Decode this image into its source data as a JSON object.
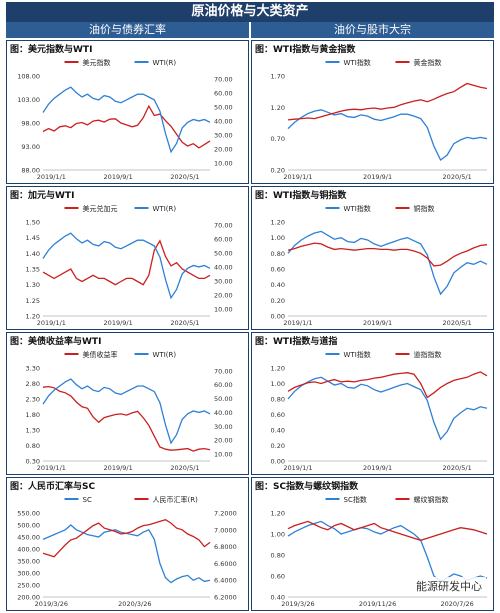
{
  "page": {
    "title": "原油价格与大类资产",
    "left_header": "油价与债券汇率",
    "right_header": "油价与股市大宗",
    "watermark": "能源研发中心"
  },
  "panels": [
    {
      "title": "图：美元指数与WTI",
      "chart_data": {
        "type": "line",
        "dual_axis": true,
        "series": [
          {
            "name": "美元指数",
            "color": "#cc1f1f",
            "axis": "left"
          },
          {
            "name": "WTI(R)",
            "color": "#2f80d6",
            "axis": "right"
          }
        ],
        "left_ticks": [
          "108.00",
          "103.00",
          "98.00",
          "93.00",
          "88.00"
        ],
        "left_range": [
          88,
          108
        ],
        "right_ticks": [
          "70.00",
          "60.00",
          "50.00",
          "40.00",
          "30.00",
          "20.00",
          "10.00"
        ],
        "right_range": [
          5,
          72
        ],
        "x_ticks": [
          "2019/1/1",
          "2019/9/1",
          "2020/5/1"
        ],
        "values_a": [
          96.2,
          96.8,
          96.3,
          97.2,
          97.4,
          97.0,
          97.9,
          98.1,
          97.6,
          98.4,
          98.6,
          98.2,
          98.8,
          98.9,
          98.0,
          97.6,
          97.2,
          97.5,
          99.1,
          101.6,
          99.6,
          99.9,
          98.5,
          97.3,
          95.6,
          93.9,
          93.1,
          93.6,
          92.7,
          93.4,
          94.2
        ],
        "values_b": [
          46,
          52,
          56,
          59,
          62,
          64,
          60,
          57,
          59,
          56,
          55,
          58,
          57,
          54,
          53,
          55,
          57,
          59,
          59,
          57,
          55,
          47,
          31,
          18,
          24,
          35,
          39,
          41,
          40,
          41,
          39
        ]
      }
    },
    {
      "title": "图：WTI指数与黄金指数",
      "chart_data": {
        "type": "line",
        "dual_axis": false,
        "series": [
          {
            "name": "WTI指数",
            "color": "#2f80d6"
          },
          {
            "name": "黄金指数",
            "color": "#cc1f1f"
          }
        ],
        "left_ticks": [
          "1.70",
          "1.20",
          "0.70",
          "0.20"
        ],
        "left_range": [
          0.2,
          1.7
        ],
        "x_ticks": [
          "2019/1/1",
          "2019/9/1",
          "2020/5/1"
        ],
        "values_a": [
          0.86,
          0.96,
          1.04,
          1.1,
          1.14,
          1.16,
          1.12,
          1.08,
          1.1,
          1.05,
          1.04,
          1.08,
          1.06,
          1.01,
          0.99,
          1.02,
          1.05,
          1.09,
          1.09,
          1.06,
          1.02,
          0.88,
          0.58,
          0.36,
          0.44,
          0.62,
          0.68,
          0.72,
          0.7,
          0.72,
          0.7
        ],
        "values_a2": [],
        "values_b": [
          1.0,
          1.01,
          1.02,
          1.03,
          1.02,
          1.05,
          1.08,
          1.11,
          1.14,
          1.16,
          1.17,
          1.16,
          1.18,
          1.19,
          1.17,
          1.19,
          1.2,
          1.24,
          1.27,
          1.3,
          1.32,
          1.29,
          1.33,
          1.38,
          1.42,
          1.45,
          1.52,
          1.58,
          1.55,
          1.52,
          1.5
        ]
      }
    },
    {
      "title": "图：加元与WTI",
      "chart_data": {
        "type": "line",
        "dual_axis": true,
        "series": [
          {
            "name": "美元兑加元",
            "color": "#cc1f1f",
            "axis": "left"
          },
          {
            "name": "WTI(R)",
            "color": "#2f80d6",
            "axis": "right"
          }
        ],
        "left_ticks": [
          "1.50",
          "1.45",
          "1.40",
          "1.35",
          "1.30",
          "1.25",
          "1.20"
        ],
        "left_range": [
          1.2,
          1.5
        ],
        "right_ticks": [
          "70.00",
          "60.00",
          "50.00",
          "40.00",
          "30.00",
          "20.00",
          "10.00"
        ],
        "right_range": [
          5,
          72
        ],
        "x_ticks": [
          "2019/1/1",
          "2019/9/1",
          "2020/5/1"
        ],
        "values_a": [
          1.34,
          1.33,
          1.32,
          1.33,
          1.34,
          1.35,
          1.32,
          1.31,
          1.32,
          1.33,
          1.32,
          1.32,
          1.31,
          1.3,
          1.31,
          1.32,
          1.32,
          1.31,
          1.3,
          1.33,
          1.41,
          1.44,
          1.39,
          1.36,
          1.37,
          1.35,
          1.34,
          1.33,
          1.32,
          1.32,
          1.33
        ],
        "values_b": [
          46,
          52,
          56,
          59,
          62,
          64,
          60,
          57,
          59,
          56,
          55,
          58,
          57,
          54,
          53,
          55,
          57,
          59,
          59,
          57,
          55,
          47,
          31,
          18,
          24,
          35,
          39,
          41,
          40,
          41,
          39
        ]
      }
    },
    {
      "title": "图：WTI指数与铜指数",
      "chart_data": {
        "type": "line",
        "dual_axis": false,
        "series": [
          {
            "name": "WTI指数",
            "color": "#2f80d6"
          },
          {
            "name": "铜指数",
            "color": "#cc1f1f"
          }
        ],
        "left_ticks": [
          "1.20",
          "1.00",
          "0.80",
          "0.60",
          "0.40",
          "0.20",
          "0.00"
        ],
        "left_range": [
          0,
          1.2
        ],
        "x_ticks": [
          "2019/1/1",
          "2019/9/1",
          "2020/5/1"
        ],
        "values_a": [
          0.8,
          0.9,
          0.97,
          1.02,
          1.06,
          1.08,
          1.03,
          0.98,
          1.0,
          0.95,
          0.94,
          0.99,
          0.97,
          0.92,
          0.89,
          0.92,
          0.95,
          0.98,
          1.0,
          0.96,
          0.92,
          0.78,
          0.5,
          0.28,
          0.38,
          0.55,
          0.62,
          0.68,
          0.66,
          0.7,
          0.66
        ],
        "values_b": [
          0.84,
          0.86,
          0.89,
          0.91,
          0.93,
          0.92,
          0.88,
          0.85,
          0.86,
          0.85,
          0.84,
          0.85,
          0.86,
          0.86,
          0.85,
          0.85,
          0.84,
          0.85,
          0.85,
          0.83,
          0.8,
          0.74,
          0.64,
          0.65,
          0.7,
          0.76,
          0.8,
          0.83,
          0.87,
          0.9,
          0.91
        ]
      }
    },
    {
      "title": "图：美债收益率与WTI",
      "chart_data": {
        "type": "line",
        "dual_axis": true,
        "series": [
          {
            "name": "美债收益率",
            "color": "#cc1f1f",
            "axis": "left"
          },
          {
            "name": "WTI(R)",
            "color": "#2f80d6",
            "axis": "right"
          }
        ],
        "left_ticks": [
          "3.30",
          "2.80",
          "2.30",
          "1.80",
          "1.30",
          "0.80",
          "0.30"
        ],
        "left_range": [
          0.3,
          3.3
        ],
        "right_ticks": [
          "70.00",
          "60.00",
          "50.00",
          "40.00",
          "30.00",
          "20.00",
          "10.00"
        ],
        "right_range": [
          5,
          72
        ],
        "x_ticks": [
          "2019/1/1",
          "2019/9/1",
          "2020/5/1"
        ],
        "values_a": [
          2.68,
          2.7,
          2.66,
          2.55,
          2.5,
          2.4,
          2.2,
          2.05,
          2.0,
          1.72,
          1.55,
          1.7,
          1.75,
          1.8,
          1.82,
          1.78,
          1.85,
          1.9,
          1.7,
          1.45,
          1.1,
          0.75,
          0.68,
          0.65,
          0.66,
          0.68,
          0.7,
          0.62,
          0.68,
          0.7,
          0.66
        ],
        "values_b": [
          46,
          52,
          56,
          59,
          62,
          64,
          60,
          57,
          59,
          56,
          55,
          58,
          57,
          54,
          53,
          55,
          57,
          59,
          59,
          57,
          55,
          47,
          31,
          18,
          24,
          35,
          39,
          41,
          40,
          41,
          39
        ]
      }
    },
    {
      "title": "图：WTI指数与道指",
      "chart_data": {
        "type": "line",
        "dual_axis": false,
        "series": [
          {
            "name": "WTI指数",
            "color": "#2f80d6"
          },
          {
            "name": "道指指数",
            "color": "#cc1f1f"
          }
        ],
        "left_ticks": [
          "1.20",
          "1.00",
          "0.80",
          "0.60",
          "0.40",
          "0.20",
          "0.00"
        ],
        "left_range": [
          0,
          1.2
        ],
        "x_ticks": [
          "2019/1/1",
          "2019/9/1",
          "2020/5/1"
        ],
        "values_a": [
          0.8,
          0.9,
          0.97,
          1.02,
          1.06,
          1.08,
          1.03,
          0.98,
          1.0,
          0.95,
          0.94,
          0.99,
          0.97,
          0.92,
          0.89,
          0.92,
          0.95,
          0.98,
          1.0,
          0.96,
          0.92,
          0.78,
          0.5,
          0.28,
          0.38,
          0.55,
          0.62,
          0.68,
          0.66,
          0.7,
          0.68
        ],
        "values_b": [
          0.9,
          0.95,
          0.98,
          1.01,
          1.02,
          1.0,
          1.03,
          1.05,
          1.02,
          1.03,
          1.02,
          1.04,
          1.05,
          1.07,
          1.08,
          1.1,
          1.12,
          1.13,
          1.14,
          1.12,
          1.0,
          0.82,
          0.88,
          0.95,
          1.0,
          1.04,
          1.06,
          1.08,
          1.12,
          1.15,
          1.1
        ]
      }
    },
    {
      "title": "图：人民币汇率与SC",
      "chart_data": {
        "type": "line",
        "dual_axis": true,
        "series": [
          {
            "name": "SC",
            "color": "#2f80d6",
            "axis": "left"
          },
          {
            "name": "人民币汇率(R)",
            "color": "#cc1f1f",
            "axis": "right"
          }
        ],
        "left_ticks": [
          "550.00",
          "500.00",
          "450.00",
          "400.00",
          "350.00",
          "300.00",
          "250.00",
          "200.00"
        ],
        "left_range": [
          200,
          550
        ],
        "right_ticks": [
          "7.2000",
          "7.0000",
          "6.8000",
          "6.6000",
          "6.4000",
          "6.2000"
        ],
        "right_range": [
          6.2,
          7.2
        ],
        "x_ticks": [
          "2019/3/26",
          "2020/3/26"
        ],
        "values_a": [
          440,
          450,
          460,
          470,
          480,
          500,
          480,
          470,
          460,
          455,
          450,
          470,
          475,
          480,
          470,
          465,
          460,
          455,
          470,
          480,
          440,
          340,
          280,
          260,
          275,
          285,
          290,
          270,
          280,
          265,
          270
        ],
        "values_b": [
          6.72,
          6.7,
          6.68,
          6.75,
          6.82,
          6.88,
          6.9,
          6.95,
          7.0,
          7.05,
          7.08,
          7.02,
          7.0,
          6.98,
          6.95,
          6.96,
          6.98,
          7.02,
          7.05,
          7.06,
          7.08,
          7.1,
          7.12,
          7.08,
          7.02,
          7.0,
          6.95,
          6.92,
          6.88,
          6.8,
          6.85
        ]
      }
    },
    {
      "title": "图：SC指数与螺纹钢指数",
      "chart_data": {
        "type": "line",
        "dual_axis": false,
        "series": [
          {
            "name": "SC指数",
            "color": "#2f80d6"
          },
          {
            "name": "螺纹钢指数",
            "color": "#cc1f1f"
          }
        ],
        "left_ticks": [
          "1.20",
          "1.00",
          "0.80",
          "0.60",
          "0.40"
        ],
        "left_range": [
          0.4,
          1.2
        ],
        "x_ticks": [
          "2019/3/26",
          "2019/11/26",
          "2020/7/26"
        ],
        "values_a": [
          0.98,
          1.02,
          1.05,
          1.08,
          1.1,
          1.12,
          1.08,
          1.05,
          1.0,
          1.02,
          1.04,
          1.06,
          1.05,
          1.02,
          1.0,
          1.03,
          1.06,
          1.08,
          1.04,
          1.0,
          0.94,
          0.78,
          0.6,
          0.55,
          0.58,
          0.62,
          0.6,
          0.56,
          0.58,
          0.6,
          0.58
        ],
        "values_b": [
          1.05,
          1.08,
          1.1,
          1.12,
          1.09,
          1.06,
          1.04,
          1.08,
          1.1,
          1.07,
          1.04,
          1.06,
          1.08,
          1.1,
          1.06,
          1.04,
          1.02,
          1.0,
          0.98,
          0.96,
          0.94,
          0.96,
          0.98,
          1.0,
          1.02,
          1.04,
          1.06,
          1.05,
          1.04,
          1.02,
          1.0
        ]
      }
    }
  ]
}
